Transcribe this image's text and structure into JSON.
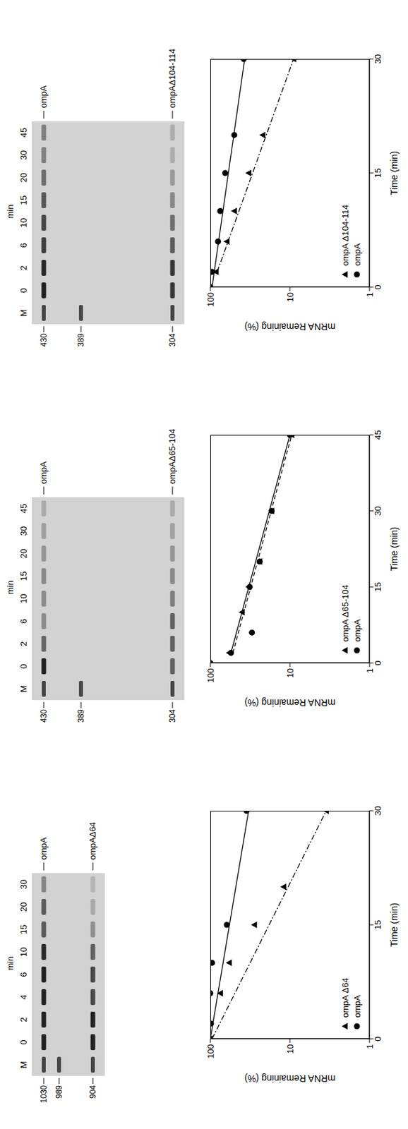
{
  "chart_data": [
    {
      "type": "scatter",
      "x_label": "Time (min)",
      "y_label": "mRNA Remaining (%)",
      "xlim": [
        0,
        30
      ],
      "xticks": [
        0,
        15,
        30
      ],
      "ylim": [
        1,
        100
      ],
      "yticks": [
        1,
        10,
        100
      ],
      "log": "y",
      "legend": "lower left",
      "series": [
        {
          "name": "ompA Δ64",
          "color": "#000000",
          "marker": "triangle",
          "line_style": "dashdot",
          "x": [
            0,
            6,
            10,
            15,
            20,
            30
          ],
          "values": [
            100,
            75,
            58,
            28,
            12,
            3.5
          ],
          "fit": {
            "x": [
              0,
              30
            ],
            "values": [
              95,
              3.5
            ]
          }
        },
        {
          "name": "ompA",
          "color": "#000000",
          "marker": "circle",
          "line_style": "solid",
          "x": [
            0,
            2,
            6,
            10,
            15,
            30
          ],
          "values": [
            100,
            98,
            100,
            95,
            62,
            35
          ],
          "fit": {
            "x": [
              0,
              30
            ],
            "values": [
              100,
              33
            ]
          }
        }
      ]
    },
    {
      "type": "scatter",
      "x_label": "Time (min)",
      "y_label": "mRNA Remaining (%)",
      "xlim": [
        0,
        45
      ],
      "xticks": [
        0,
        15,
        30,
        45
      ],
      "ylim": [
        1,
        100
      ],
      "yticks": [
        1,
        10,
        100
      ],
      "log": "y",
      "legend": "lower left",
      "series": [
        {
          "name": "ompA Δ65-104",
          "color": "#000000",
          "marker": "triangle",
          "line_style": "dashed",
          "x": [
            2,
            10,
            15,
            20,
            30,
            45
          ],
          "values": [
            58,
            40,
            33,
            24,
            17,
            9.5
          ],
          "fit": {
            "x": [
              2,
              45
            ],
            "values": [
              52,
              9.5
            ]
          }
        },
        {
          "name": "ompA",
          "color": "#000000",
          "marker": "circle",
          "line_style": "solid",
          "x": [
            0,
            2,
            6,
            15,
            20,
            30,
            45
          ],
          "values": [
            100,
            55,
            30,
            32,
            24,
            17,
            10
          ],
          "fit": {
            "x": [
              2,
              45
            ],
            "values": [
              55,
              10
            ]
          }
        }
      ]
    },
    {
      "type": "scatter",
      "x_label": "Time (min)",
      "y_label": "mRNA Remaining (%)",
      "xlim": [
        0,
        30
      ],
      "xticks": [
        0,
        15,
        30
      ],
      "ylim": [
        1,
        100
      ],
      "yticks": [
        1,
        10,
        100
      ],
      "log": "y",
      "legend": "lower left",
      "series": [
        {
          "name": "ompA Δ104-114",
          "color": "#000000",
          "marker": "triangle",
          "line_style": "dashdot",
          "x": [
            2,
            6,
            10,
            15,
            20,
            30
          ],
          "values": [
            85,
            62,
            50,
            33,
            22,
            9
          ],
          "fit": {
            "x": [
              2,
              30
            ],
            "values": [
              82,
              9
            ]
          }
        },
        {
          "name": "ompA",
          "color": "#000000",
          "marker": "circle",
          "line_style": "solid",
          "x": [
            0,
            2,
            6,
            10,
            15,
            20,
            30
          ],
          "values": [
            100,
            95,
            80,
            75,
            65,
            50,
            38
          ],
          "fit": {
            "x": [
              0,
              30
            ],
            "values": [
              95,
              37
            ]
          }
        }
      ]
    }
  ],
  "gels": [
    {
      "header": "min",
      "lanes": [
        "M",
        "0",
        "2",
        "4",
        "6",
        "10",
        "15",
        "20",
        "30"
      ],
      "markers": [
        1030,
        989,
        904
      ],
      "bands": [
        "ompA",
        "ompAΔ64"
      ]
    },
    {
      "header": "min",
      "lanes": [
        "M",
        "0",
        "2",
        "6",
        "10",
        "15",
        "20",
        "30",
        "45"
      ],
      "markers": [
        430,
        389,
        304
      ],
      "bands": [
        "ompA",
        "ompAΔ65-104"
      ]
    },
    {
      "header": "min",
      "lanes": [
        "M",
        "0",
        "2",
        "6",
        "10",
        "15",
        "20",
        "30",
        "45"
      ],
      "markers": [
        430,
        389,
        304
      ],
      "bands": [
        "ompA",
        "ompAΔ104-114"
      ]
    }
  ]
}
